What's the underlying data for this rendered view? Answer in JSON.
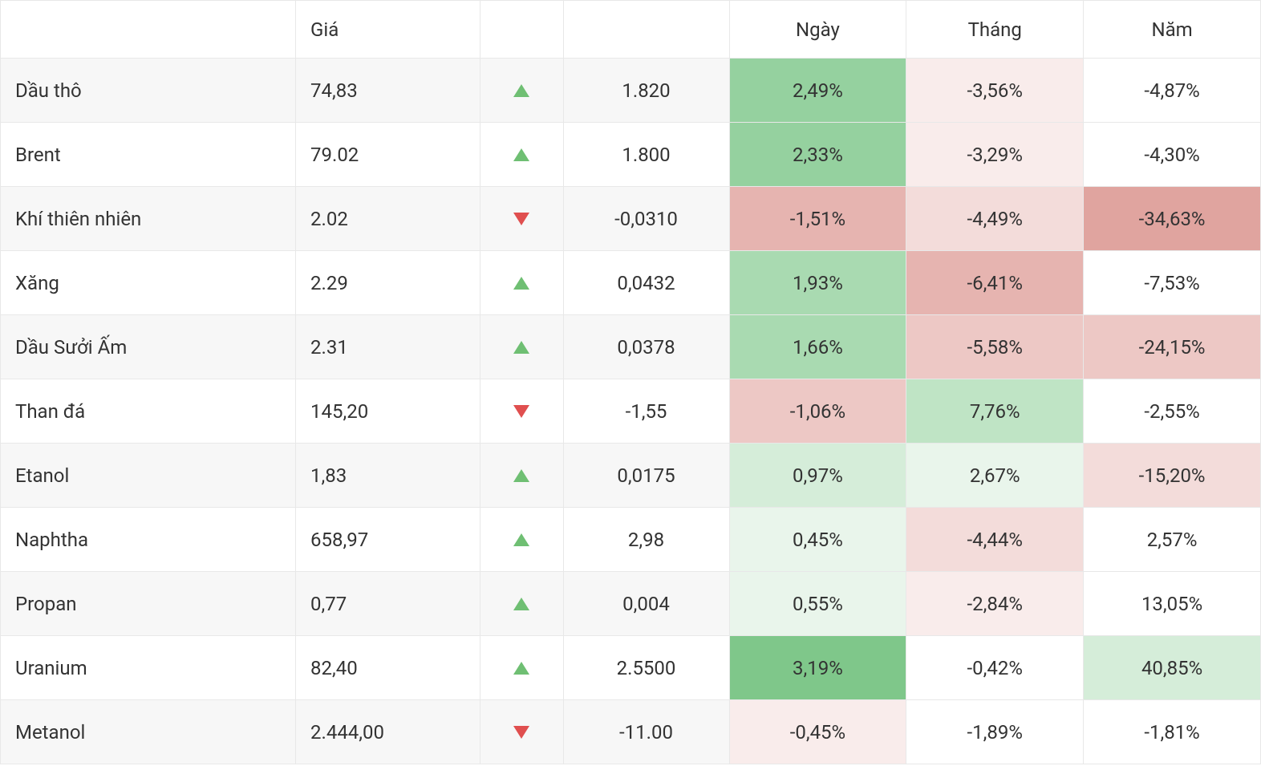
{
  "table": {
    "headers": {
      "name": "",
      "price": "Giá",
      "arrow": "",
      "change": "",
      "day": "Ngày",
      "month": "Tháng",
      "year": "Năm"
    },
    "colors": {
      "border": "#e8e8e8",
      "text": "#333333",
      "row_even_bg": "#f7f7f7",
      "row_odd_bg": "#ffffff",
      "arrow_up": "#6fbf73",
      "arrow_down": "#e04f4f",
      "heat": {
        "g6": "#7fc78a",
        "g5": "#95d19f",
        "g4": "#a9dab1",
        "g3": "#bfe4c5",
        "g2": "#d5edd9",
        "g1": "#e9f5eb",
        "neutral": "#ffffff",
        "r1": "#f9eceb",
        "r2": "#f3dcda",
        "r3": "#edc8c5",
        "r4": "#e6b4b0",
        "r5": "#e0a49f",
        "r6": "#d9918b"
      }
    },
    "rows": [
      {
        "name": "Dầu thô",
        "price": "74,83",
        "direction": "up",
        "change": "1.820",
        "day": {
          "value": "2,49%",
          "heat": "g5"
        },
        "month": {
          "value": "-3,56%",
          "heat": "r1"
        },
        "year": {
          "value": "-4,87%",
          "heat": "neutral"
        }
      },
      {
        "name": "Brent",
        "price": "79.02",
        "direction": "up",
        "change": "1.800",
        "day": {
          "value": "2,33%",
          "heat": "g5"
        },
        "month": {
          "value": "-3,29%",
          "heat": "r1"
        },
        "year": {
          "value": "-4,30%",
          "heat": "neutral"
        }
      },
      {
        "name": "Khí thiên nhiên",
        "price": "2.02",
        "direction": "down",
        "change": "-0,0310",
        "day": {
          "value": "-1,51%",
          "heat": "r4"
        },
        "month": {
          "value": "-4,49%",
          "heat": "r2"
        },
        "year": {
          "value": "-34,63%",
          "heat": "r5"
        }
      },
      {
        "name": "Xăng",
        "price": "2.29",
        "direction": "up",
        "change": "0,0432",
        "day": {
          "value": "1,93%",
          "heat": "g4"
        },
        "month": {
          "value": "-6,41%",
          "heat": "r4"
        },
        "year": {
          "value": "-7,53%",
          "heat": "neutral"
        }
      },
      {
        "name": "Dầu Sưởi Ấm",
        "price": "2.31",
        "direction": "up",
        "change": "0,0378",
        "day": {
          "value": "1,66%",
          "heat": "g4"
        },
        "month": {
          "value": "-5,58%",
          "heat": "r3"
        },
        "year": {
          "value": "-24,15%",
          "heat": "r3"
        }
      },
      {
        "name": "Than đá",
        "price": "145,20",
        "direction": "down",
        "change": "-1,55",
        "day": {
          "value": "-1,06%",
          "heat": "r3"
        },
        "month": {
          "value": "7,76%",
          "heat": "g3"
        },
        "year": {
          "value": "-2,55%",
          "heat": "neutral"
        }
      },
      {
        "name": "Etanol",
        "price": "1,83",
        "direction": "up",
        "change": "0,0175",
        "day": {
          "value": "0,97%",
          "heat": "g2"
        },
        "month": {
          "value": "2,67%",
          "heat": "g1"
        },
        "year": {
          "value": "-15,20%",
          "heat": "r2"
        }
      },
      {
        "name": "Naphtha",
        "price": "658,97",
        "direction": "up",
        "change": "2,98",
        "day": {
          "value": "0,45%",
          "heat": "g1"
        },
        "month": {
          "value": "-4,44%",
          "heat": "r2"
        },
        "year": {
          "value": "2,57%",
          "heat": "neutral"
        }
      },
      {
        "name": "Propan",
        "price": "0,77",
        "direction": "up",
        "change": "0,004",
        "day": {
          "value": "0,55%",
          "heat": "g1"
        },
        "month": {
          "value": "-2,84%",
          "heat": "r1"
        },
        "year": {
          "value": "13,05%",
          "heat": "neutral"
        }
      },
      {
        "name": "Uranium",
        "price": "82,40",
        "direction": "up",
        "change": "2.5500",
        "day": {
          "value": "3,19%",
          "heat": "g6"
        },
        "month": {
          "value": "-0,42%",
          "heat": "neutral"
        },
        "year": {
          "value": "40,85%",
          "heat": "g2"
        }
      },
      {
        "name": "Metanol",
        "price": "2.444,00",
        "direction": "down",
        "change": "-11.00",
        "day": {
          "value": "-0,45%",
          "heat": "r1"
        },
        "month": {
          "value": "-1,89%",
          "heat": "neutral"
        },
        "year": {
          "value": "-1,81%",
          "heat": "neutral"
        }
      }
    ]
  }
}
